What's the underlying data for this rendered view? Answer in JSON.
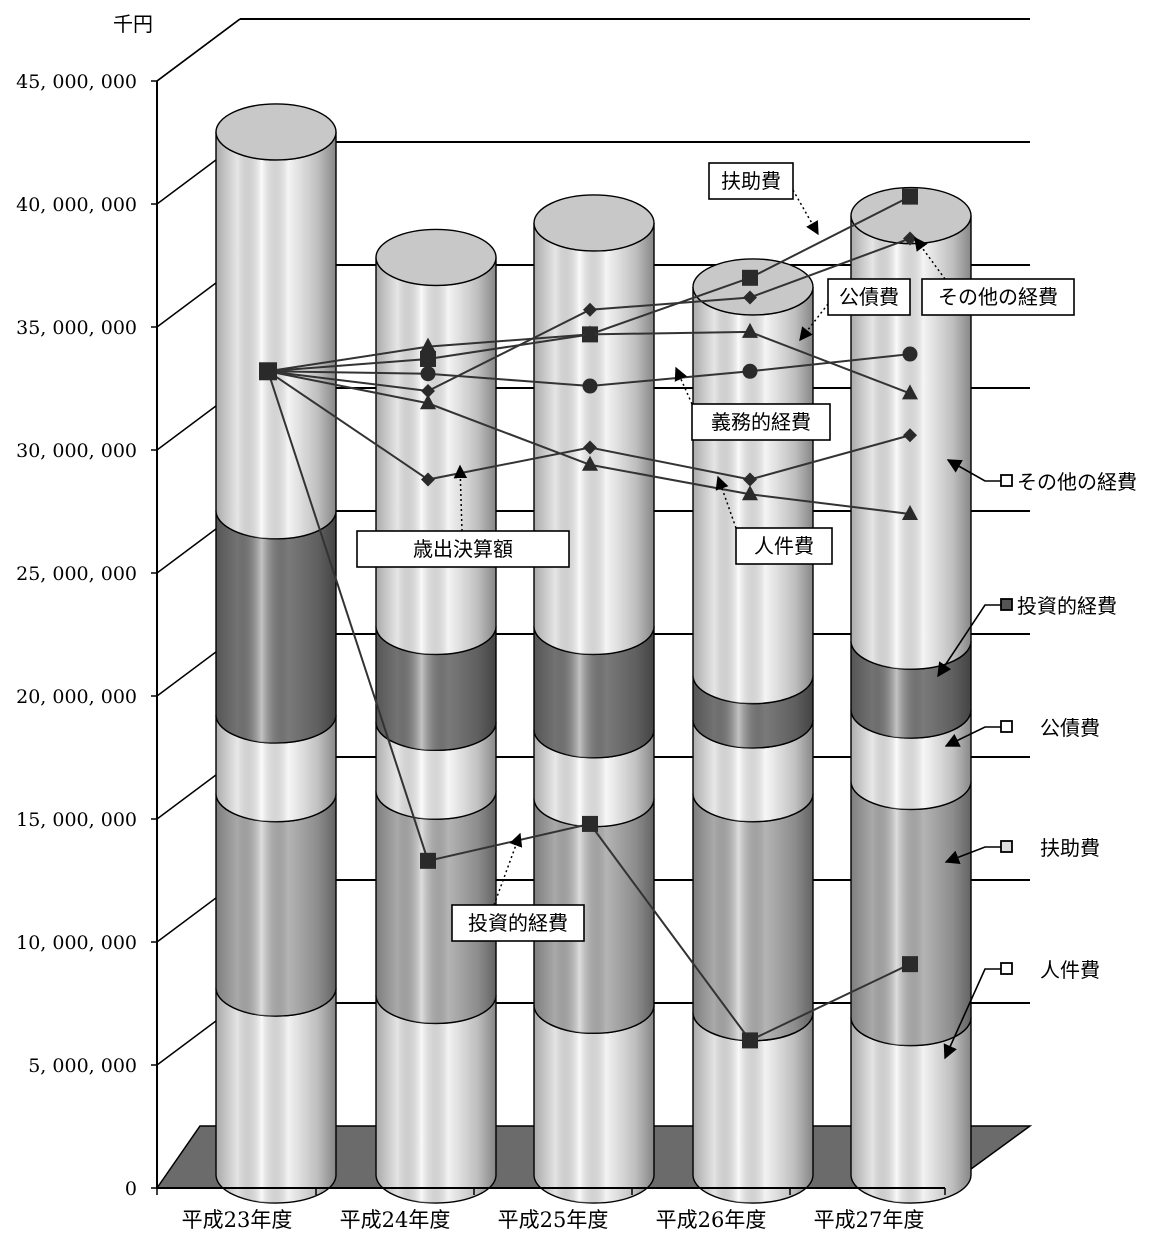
{
  "chart_data": {
    "type": "bar",
    "subtype": "stacked-cylinder-3d-with-index-lines",
    "unit_label": "千円",
    "categories": [
      "平成23年度",
      "平成24年度",
      "平成25年度",
      "平成26年度",
      "平成27年度"
    ],
    "ylim": [
      0,
      45000000
    ],
    "yticks": [
      "0",
      "5, 000, 000",
      "10, 000, 000",
      "15, 000, 000",
      "20, 000, 000",
      "25, 000, 000",
      "30, 000, 000",
      "35, 000, 000",
      "40, 000, 000",
      "45, 000, 000"
    ],
    "ytick_values": [
      0,
      5000000,
      10000000,
      15000000,
      20000000,
      25000000,
      30000000,
      35000000,
      40000000,
      45000000
    ],
    "grid": true,
    "series": [
      {
        "name": "人件費",
        "values": [
          7600000,
          7300000,
          6900000,
          6600000,
          6400000
        ],
        "color": "#f2f2f2"
      },
      {
        "name": "扶助費",
        "values": [
          7900000,
          8300000,
          8400000,
          8900000,
          9600000
        ],
        "color": "#b4b4b4"
      },
      {
        "name": "公債費",
        "values": [
          3200000,
          2800000,
          2800000,
          3000000,
          2900000
        ],
        "color": "#f7f7f7"
      },
      {
        "name": "投資的経費",
        "values": [
          8300000,
          3900000,
          4200000,
          1800000,
          2800000
        ],
        "color": "#7a7a7a"
      },
      {
        "name": "その他の経費",
        "values": [
          15400000,
          15000000,
          16400000,
          15800000,
          17300000
        ],
        "color": "#f4f4f4"
      }
    ],
    "legend": [
      "その他の経費",
      "投資的経費",
      "公債費",
      "扶助費",
      "人件費"
    ],
    "line_series": [
      {
        "name": "扶助費",
        "marker": "square",
        "values": [
          33200000,
          33700000,
          34700000,
          37000000,
          40300000
        ]
      },
      {
        "name": "公債費",
        "marker": "triangle",
        "values": [
          33200000,
          34200000,
          34700000,
          34800000,
          32300000
        ]
      },
      {
        "name": "義務的経費",
        "marker": "circle",
        "values": [
          33200000,
          33100000,
          32600000,
          33200000,
          33900000
        ]
      },
      {
        "name": "その他の経費",
        "marker": "diamond",
        "values": [
          33200000,
          32400000,
          35700000,
          36200000,
          38600000
        ]
      },
      {
        "name": "歳出決算額",
        "marker": "diamond",
        "values": [
          33200000,
          28800000,
          30100000,
          28800000,
          30600000
        ]
      },
      {
        "name": "人件費",
        "marker": "triangle",
        "values": [
          33200000,
          31900000,
          29400000,
          28200000,
          27400000
        ]
      },
      {
        "name": "投資的経費",
        "marker": "square",
        "values": [
          33200000,
          13300000,
          14800000,
          6000000,
          9100000
        ]
      }
    ],
    "callouts": [
      "扶助費",
      "公債費",
      "その他の経費",
      "義務的経費",
      "歳出決算額",
      "人件費",
      "投資的経費"
    ]
  }
}
